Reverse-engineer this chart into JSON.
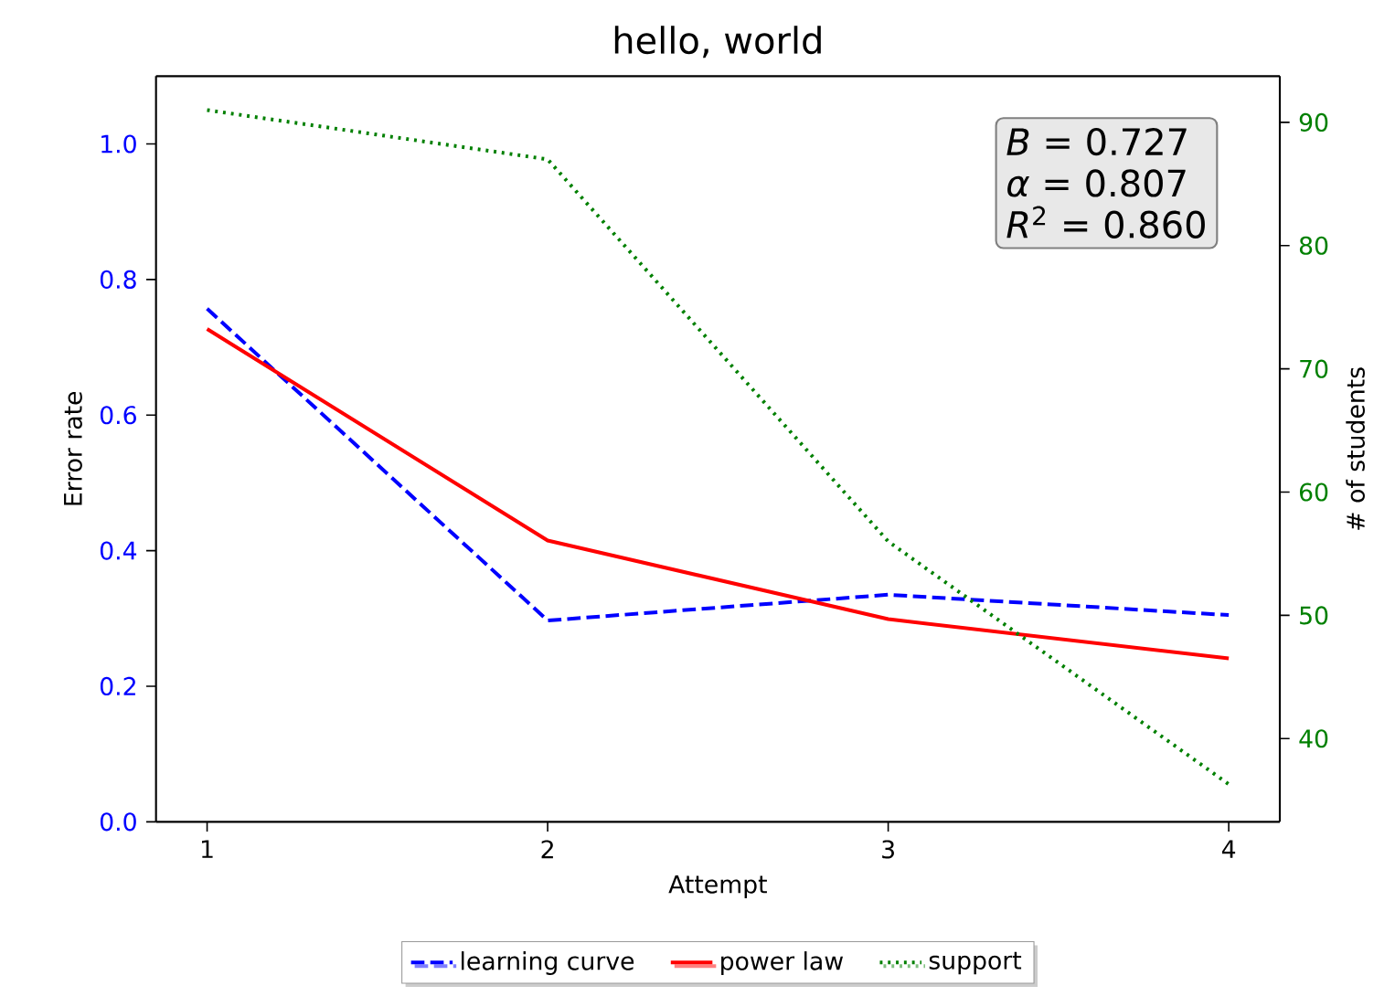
{
  "chart_data": {
    "type": "line",
    "title": "hello, world",
    "xlabel": "Attempt",
    "ylabel": "Error rate",
    "y2label": "# of students",
    "x": [
      1,
      2,
      3,
      4
    ],
    "xlim": [
      0.85,
      4.15
    ],
    "xticks": [
      1,
      2,
      3,
      4
    ],
    "ylim": [
      0,
      1.1
    ],
    "yticks": [
      {
        "value": 0,
        "label": "0.0"
      },
      0.2,
      0.4,
      0.6,
      0.8,
      {
        "value": 1,
        "label": "1.0"
      }
    ],
    "y2lim": [
      33.25,
      93.75
    ],
    "y2ticks": [
      40,
      50,
      60,
      70,
      80,
      90
    ],
    "series": [
      {
        "name": "learning curve",
        "color": "#0000ff",
        "line_style": "dashed",
        "values": [
          0.757,
          0.297,
          0.335,
          0.305
        ]
      },
      {
        "name": "power law",
        "color": "#ff0000",
        "line_style": "solid",
        "values": [
          0.727,
          0.415,
          0.299,
          0.241
        ]
      },
      {
        "name": "support",
        "color": "#008000",
        "line_style": "dotted",
        "axis": "y2",
        "values": [
          91,
          87,
          56,
          36.3
        ]
      }
    ],
    "legend": "bottom",
    "grid": false,
    "marker": "none",
    "annotations": [
      "*B* = 0.727",
      "*α* = 0.807",
      "*R*$^{2}$ = 0.860"
    ]
  }
}
